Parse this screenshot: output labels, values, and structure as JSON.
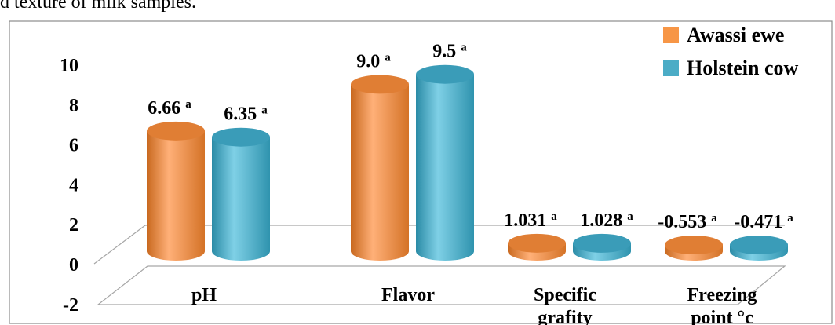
{
  "caption": "d texture of milk samples.",
  "chart_data": {
    "type": "bar",
    "style": "3d-cylinder",
    "categories": [
      "pH",
      "Flavor",
      "Specific grafity",
      "Freezing point °c"
    ],
    "series": [
      {
        "name": "Awassi ewe",
        "color": "#F79646",
        "values": [
          6.66,
          9.0,
          1.031,
          -0.553
        ],
        "labels": [
          "6.66",
          "9.0",
          "1.031",
          "-0.553"
        ],
        "superscripts": [
          "a",
          "a",
          "a",
          "a"
        ]
      },
      {
        "name": "Holstein cow",
        "color": "#4BACC6",
        "values": [
          6.35,
          9.5,
          1.028,
          -0.471
        ],
        "labels": [
          "6.35",
          "9.5",
          "1.028",
          "-0.471"
        ],
        "superscripts": [
          "a",
          "a",
          "a",
          "a"
        ]
      }
    ],
    "ylim": [
      -2,
      10
    ],
    "yticks": [
      -2,
      0,
      2,
      4,
      6,
      8,
      10
    ],
    "legend_position": "top-right",
    "grid": false
  }
}
